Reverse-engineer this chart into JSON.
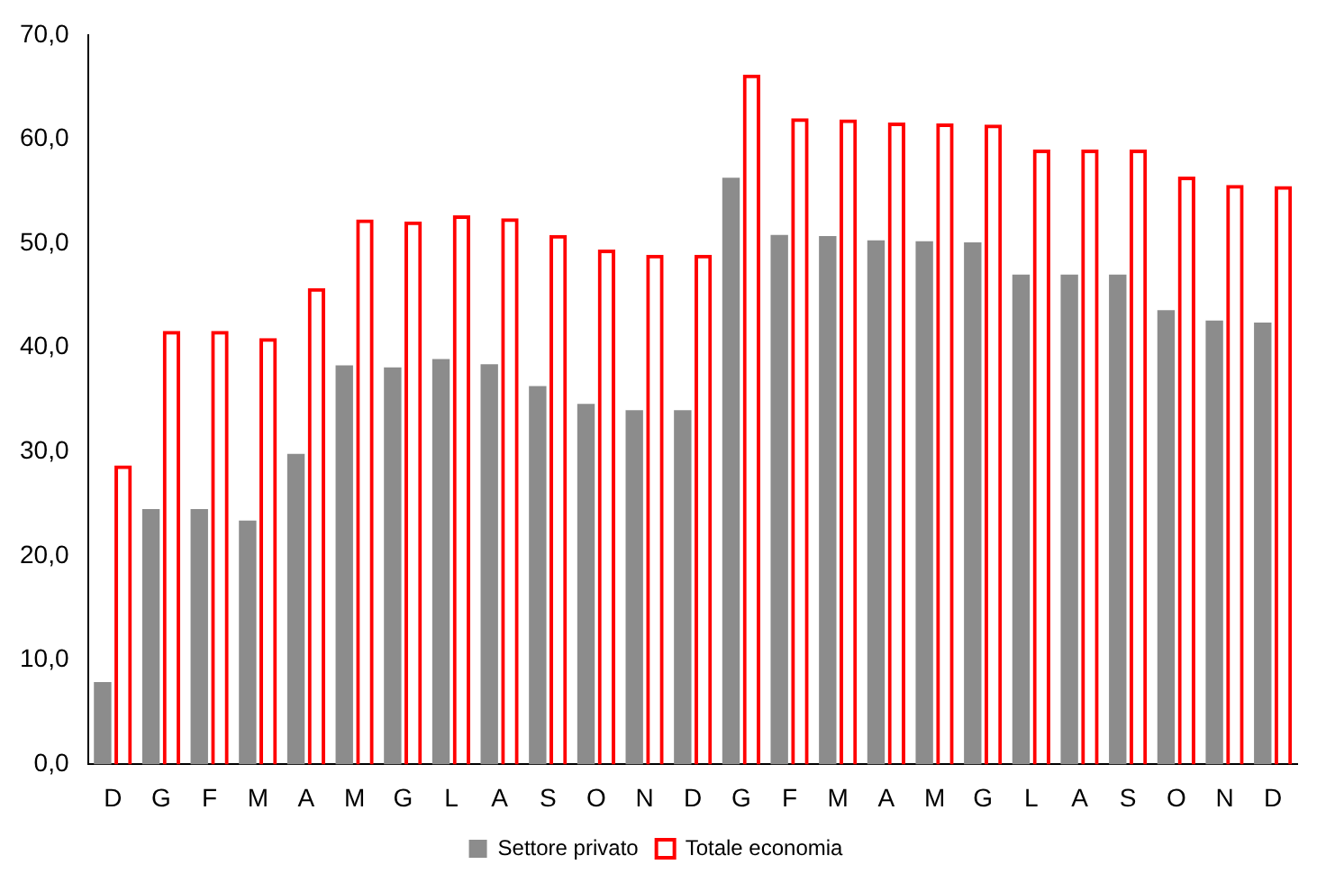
{
  "chart_data": {
    "type": "bar",
    "categories": [
      "D",
      "G",
      "F",
      "M",
      "A",
      "M",
      "G",
      "L",
      "A",
      "S",
      "O",
      "N",
      "D",
      "G",
      "F",
      "M",
      "A",
      "M",
      "G",
      "L",
      "A",
      "S",
      "O",
      "N",
      "D"
    ],
    "series": [
      {
        "name": "Settore privato",
        "color": "#8c8c8c",
        "values": [
          7.9,
          24.5,
          24.5,
          23.4,
          29.8,
          38.3,
          38.1,
          38.9,
          38.4,
          36.3,
          34.6,
          34.0,
          34.0,
          56.3,
          50.8,
          50.7,
          50.3,
          50.2,
          50.1,
          47.0,
          47.0,
          47.0,
          43.6,
          42.6,
          42.4
        ]
      },
      {
        "name": "Totale economia",
        "color": "#ff0000",
        "values": [
          28.7,
          41.6,
          41.6,
          40.9,
          45.7,
          52.3,
          52.1,
          52.7,
          52.4,
          50.8,
          49.4,
          48.9,
          48.9,
          66.2,
          62.0,
          61.9,
          61.6,
          61.5,
          61.4,
          59.0,
          59.0,
          59.0,
          56.4,
          55.6,
          55.5
        ]
      }
    ],
    "ylim": [
      0,
      70
    ],
    "yticks": [
      {
        "value": 0,
        "label": "0,0"
      },
      {
        "value": 10,
        "label": "10,0"
      },
      {
        "value": 20,
        "label": "20,0"
      },
      {
        "value": 30,
        "label": "30,0"
      },
      {
        "value": 40,
        "label": "40,0"
      },
      {
        "value": 50,
        "label": "50,0"
      },
      {
        "value": 60,
        "label": "60,0"
      },
      {
        "value": 70,
        "label": "70,0"
      }
    ],
    "grid": false,
    "legend": "bottom"
  }
}
